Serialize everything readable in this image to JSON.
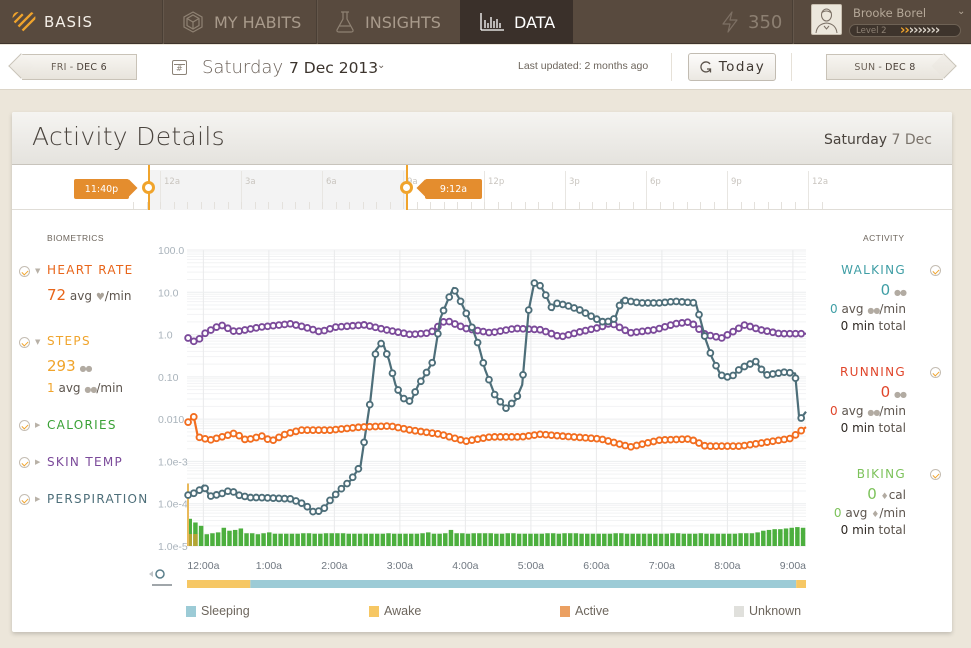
{
  "nav": {
    "brand": "BASIS",
    "tabs": [
      {
        "label": "MY HABITS",
        "icon": "cube-icon",
        "active": false
      },
      {
        "label": "INSIGHTS",
        "icon": "flask-icon",
        "active": false
      },
      {
        "label": "DATA",
        "icon": "bar-chart-icon",
        "active": true
      }
    ],
    "points": "350",
    "user": {
      "name": "Brooke Borel",
      "level": "Level 2",
      "level_progress_filled": 2,
      "level_progress_total": 9
    }
  },
  "datebar": {
    "prev_day": {
      "dow": "FRI",
      "date": "DEC 6"
    },
    "next_day": {
      "dow": "SUN",
      "date": "DEC 8"
    },
    "weekday": "Saturday",
    "date": "7 Dec 2013",
    "last_updated": "Last updated: 2 months ago",
    "today_label": "Today"
  },
  "card": {
    "title": "Activity Details",
    "date_weekday": "Saturday",
    "date_day": "7 Dec"
  },
  "timeline": {
    "hour_labels": [
      "12a",
      "3a",
      "6a",
      "9a",
      "12p",
      "3p",
      "6p",
      "9p",
      "12a"
    ],
    "range_start": "11:40p",
    "range_end": "9:12a"
  },
  "biometrics": {
    "title": "BIOMETRICS",
    "items": [
      {
        "name": "HEART RATE",
        "color": "#e8651a",
        "expanded": true,
        "value": "72",
        "value_unit": "avg",
        "rate_unit": "/min"
      },
      {
        "name": "STEPS",
        "color": "#f0a42c",
        "expanded": true,
        "value": "293",
        "avg": "1",
        "avg_unit": "avg",
        "rate_unit": "/min"
      },
      {
        "name": "CALORIES",
        "color": "#3aa136",
        "expanded": false
      },
      {
        "name": "SKIN TEMP",
        "color": "#7b4a9a",
        "expanded": false
      },
      {
        "name": "PERSPIRATION",
        "color": "#4d6e79",
        "expanded": false
      }
    ]
  },
  "activity": {
    "title": "ACTIVITY",
    "items": [
      {
        "name": "WALKING",
        "color": "#3f9ea5",
        "value": "0",
        "avg": "0",
        "avg_label": "avg",
        "rate_unit": "/min",
        "total": "0",
        "total_unit": "min",
        "total_label": "total",
        "unit_icon": "footsteps-icon"
      },
      {
        "name": "RUNNING",
        "color": "#e0452a",
        "value": "0",
        "avg": "0",
        "avg_label": "avg",
        "rate_unit": "/min",
        "total": "0",
        "total_unit": "min",
        "total_label": "total",
        "unit_icon": "footsteps-icon"
      },
      {
        "name": "BIKING",
        "color": "#7cc25a",
        "value": "0",
        "value_suffix": "cal",
        "avg": "0",
        "avg_label": "avg",
        "rate_unit": "/min",
        "total": "0",
        "total_unit": "min",
        "total_label": "total",
        "unit_icon": "flame-icon"
      }
    ]
  },
  "chart_data": {
    "type": "line",
    "title": "",
    "xlabel": "",
    "ylabel": "",
    "y_scale": "log",
    "ylim": [
      1e-05,
      100
    ],
    "y_ticks": [
      "100.0",
      "10.0",
      "1.0",
      "0.10",
      "0.010",
      "1.0e-3",
      "1.0e-4",
      "1.0e-5"
    ],
    "x_unit": "minutes after 12:00a",
    "xlim": [
      -15,
      552
    ],
    "x_ticks": [
      "12:00a",
      "1:00a",
      "2:00a",
      "3:00a",
      "4:00a",
      "5:00a",
      "6:00a",
      "7:00a",
      "8:00a",
      "9:00a"
    ],
    "grid": true,
    "series": [
      {
        "name": "Skin Temp",
        "color": "#7b4a9a",
        "marker": "circle",
        "points": [
          [
            -14,
            0.83
          ],
          [
            -7,
            0.65
          ],
          [
            2,
            1.1
          ],
          [
            16,
            1.7
          ],
          [
            29,
            1.16
          ],
          [
            52,
            1.5
          ],
          [
            80,
            1.8
          ],
          [
            93,
            1.5
          ],
          [
            107,
            1.16
          ],
          [
            121,
            1.5
          ],
          [
            148,
            1.7
          ],
          [
            167,
            1.3
          ],
          [
            190,
            1.0
          ],
          [
            208,
            1.1
          ],
          [
            222,
            2.2
          ],
          [
            240,
            1.4
          ],
          [
            263,
            1.1
          ],
          [
            286,
            1.4
          ],
          [
            309,
            1.3
          ],
          [
            327,
            0.88
          ],
          [
            345,
            1.16
          ],
          [
            364,
            1.5
          ],
          [
            373,
            1.9
          ],
          [
            391,
            1.1
          ],
          [
            414,
            1.3
          ],
          [
            432,
            1.8
          ],
          [
            446,
            2.0
          ],
          [
            460,
            1.0
          ],
          [
            475,
            0.83
          ],
          [
            496,
            1.7
          ],
          [
            510,
            1.3
          ],
          [
            528,
            1.05
          ],
          [
            552,
            1.05
          ]
        ]
      },
      {
        "name": "Perspiration",
        "color": "#4d6e79",
        "marker": "circle",
        "points": [
          [
            -14,
            0.00016
          ],
          [
            -5,
            0.00019
          ],
          [
            0,
            0.00027
          ],
          [
            6,
            0.00015
          ],
          [
            16,
            0.00017
          ],
          [
            25,
            0.00021
          ],
          [
            32,
            0.00016
          ],
          [
            43,
            0.00014
          ],
          [
            52,
            0.00014
          ],
          [
            80,
            0.00013
          ],
          [
            93,
            9.6e-05
          ],
          [
            100,
            6.5e-05
          ],
          [
            109,
            6.8e-05
          ],
          [
            116,
            0.00012
          ],
          [
            125,
            0.00021
          ],
          [
            135,
            0.00036
          ],
          [
            144,
            0.0008
          ],
          [
            153,
            0.028
          ],
          [
            158,
            0.43
          ],
          [
            164,
            0.67
          ],
          [
            170,
            0.25
          ],
          [
            176,
            0.065
          ],
          [
            182,
            0.032
          ],
          [
            190,
            0.026
          ],
          [
            197,
            0.065
          ],
          [
            203,
            0.11
          ],
          [
            211,
            0.25
          ],
          [
            217,
            2.4
          ],
          [
            224,
            6.6
          ],
          [
            229,
            12.6
          ],
          [
            235,
            6.6
          ],
          [
            243,
            2.4
          ],
          [
            252,
            0.57
          ],
          [
            258,
            0.15
          ],
          [
            267,
            0.037
          ],
          [
            277,
            0.018
          ],
          [
            286,
            0.028
          ],
          [
            292,
            0.065
          ],
          [
            298,
            3.8
          ],
          [
            303,
            16.6
          ],
          [
            309,
            14.1
          ],
          [
            314,
            8.2
          ],
          [
            320,
            3.8
          ],
          [
            322,
            5.6
          ],
          [
            332,
            5.0
          ],
          [
            345,
            3.8
          ],
          [
            359,
            2.4
          ],
          [
            368,
            1.9
          ],
          [
            377,
            2.4
          ],
          [
            383,
            6.6
          ],
          [
            400,
            5.6
          ],
          [
            418,
            5.6
          ],
          [
            432,
            6.1
          ],
          [
            451,
            5.6
          ],
          [
            455,
            2.4
          ],
          [
            460,
            0.77
          ],
          [
            466,
            0.28
          ],
          [
            474,
            0.11
          ],
          [
            483,
            0.095
          ],
          [
            492,
            0.16
          ],
          [
            506,
            0.23
          ],
          [
            515,
            0.11
          ],
          [
            533,
            0.13
          ],
          [
            542,
            0.12
          ],
          [
            546,
            0.0094
          ],
          [
            552,
            0.015
          ]
        ]
      },
      {
        "name": "Calories",
        "color": "#f26d1f",
        "marker": "circle",
        "points": [
          [
            -14,
            0.0085
          ],
          [
            -9,
            0.012
          ],
          [
            -5,
            0.0038
          ],
          [
            6,
            0.0032
          ],
          [
            20,
            0.004
          ],
          [
            29,
            0.0047
          ],
          [
            39,
            0.0032
          ],
          [
            54,
            0.004
          ],
          [
            62,
            0.003
          ],
          [
            75,
            0.0044
          ],
          [
            89,
            0.0055
          ],
          [
            116,
            0.0055
          ],
          [
            144,
            0.0065
          ],
          [
            171,
            0.0069
          ],
          [
            190,
            0.0055
          ],
          [
            217,
            0.0044
          ],
          [
            240,
            0.003
          ],
          [
            263,
            0.0038
          ],
          [
            291,
            0.0038
          ],
          [
            309,
            0.0044
          ],
          [
            327,
            0.004
          ],
          [
            364,
            0.0034
          ],
          [
            391,
            0.0022
          ],
          [
            418,
            0.0032
          ],
          [
            446,
            0.0034
          ],
          [
            460,
            0.0023
          ],
          [
            492,
            0.0023
          ],
          [
            510,
            0.0027
          ],
          [
            538,
            0.0035
          ],
          [
            552,
            0.0065
          ]
        ]
      },
      {
        "name": "Steps",
        "color": "#4caf3e",
        "type": "bar",
        "bar_interval_min": 5.2,
        "values": [
          4.4e-05,
          3.6e-05,
          3e-05,
          1.9e-05,
          2e-05,
          2.1e-05,
          2.7e-05,
          2.3e-05,
          2.4e-05,
          2.6e-05,
          2e-05,
          2e-05,
          1.9e-05,
          2e-05,
          2.1e-05,
          1.95e-05,
          1.95e-05,
          1.95e-05,
          1.95e-05,
          1.95e-05,
          2e-05,
          2e-05,
          1.95e-05,
          1.95e-05,
          2e-05,
          2e-05,
          2e-05,
          2e-05,
          1.95e-05,
          1.95e-05,
          1.95e-05,
          1.95e-05,
          1.95e-05,
          1.95e-05,
          1.95e-05,
          2e-05,
          1.95e-05,
          1.95e-05,
          1.95e-05,
          1.95e-05,
          1.95e-05,
          2e-05,
          2.1e-05,
          1.95e-05,
          1.95e-05,
          2e-05,
          2.4e-05,
          2e-05,
          2e-05,
          1.95e-05,
          2e-05,
          2e-05,
          2e-05,
          2e-05,
          1.95e-05,
          1.95e-05,
          2e-05,
          2e-05,
          1.95e-05,
          1.95e-05,
          1.95e-05,
          1.95e-05,
          1.95e-05,
          2e-05,
          2e-05,
          1.95e-05,
          2e-05,
          2e-05,
          2e-05,
          1.95e-05,
          1.95e-05,
          1.95e-05,
          1.95e-05,
          1.95e-05,
          1.95e-05,
          2e-05,
          2e-05,
          1.95e-05,
          1.95e-05,
          1.95e-05,
          1.95e-05,
          1.95e-05,
          1.95e-05,
          1.95e-05,
          1.95e-05,
          2e-05,
          2e-05,
          1.95e-05,
          1.95e-05,
          1.95e-05,
          2e-05,
          1.95e-05,
          1.95e-05,
          1.95e-05,
          1.95e-05,
          1.95e-05,
          1.95e-05,
          2e-05,
          2e-05,
          2e-05,
          2.1e-05,
          2.3e-05,
          2.4e-05,
          2.5e-05,
          2.5e-05,
          2.6e-05,
          2.7e-05,
          2.8e-05,
          2.7e-05
        ],
        "awake_overlay_bars": 2
      }
    ],
    "state_bar": {
      "segments": [
        {
          "state": "Awake",
          "start": -15,
          "end": 43
        },
        {
          "state": "Sleeping",
          "start": 43,
          "end": 543
        },
        {
          "state": "Awake",
          "start": 543,
          "end": 552
        }
      ]
    },
    "legend": [
      {
        "label": "Sleeping",
        "color": "#9ccbd6"
      },
      {
        "label": "Awake",
        "color": "#f6c764"
      },
      {
        "label": "Active",
        "color": "#eba062"
      },
      {
        "label": "Unknown",
        "color": "#e0e0dc"
      }
    ]
  }
}
